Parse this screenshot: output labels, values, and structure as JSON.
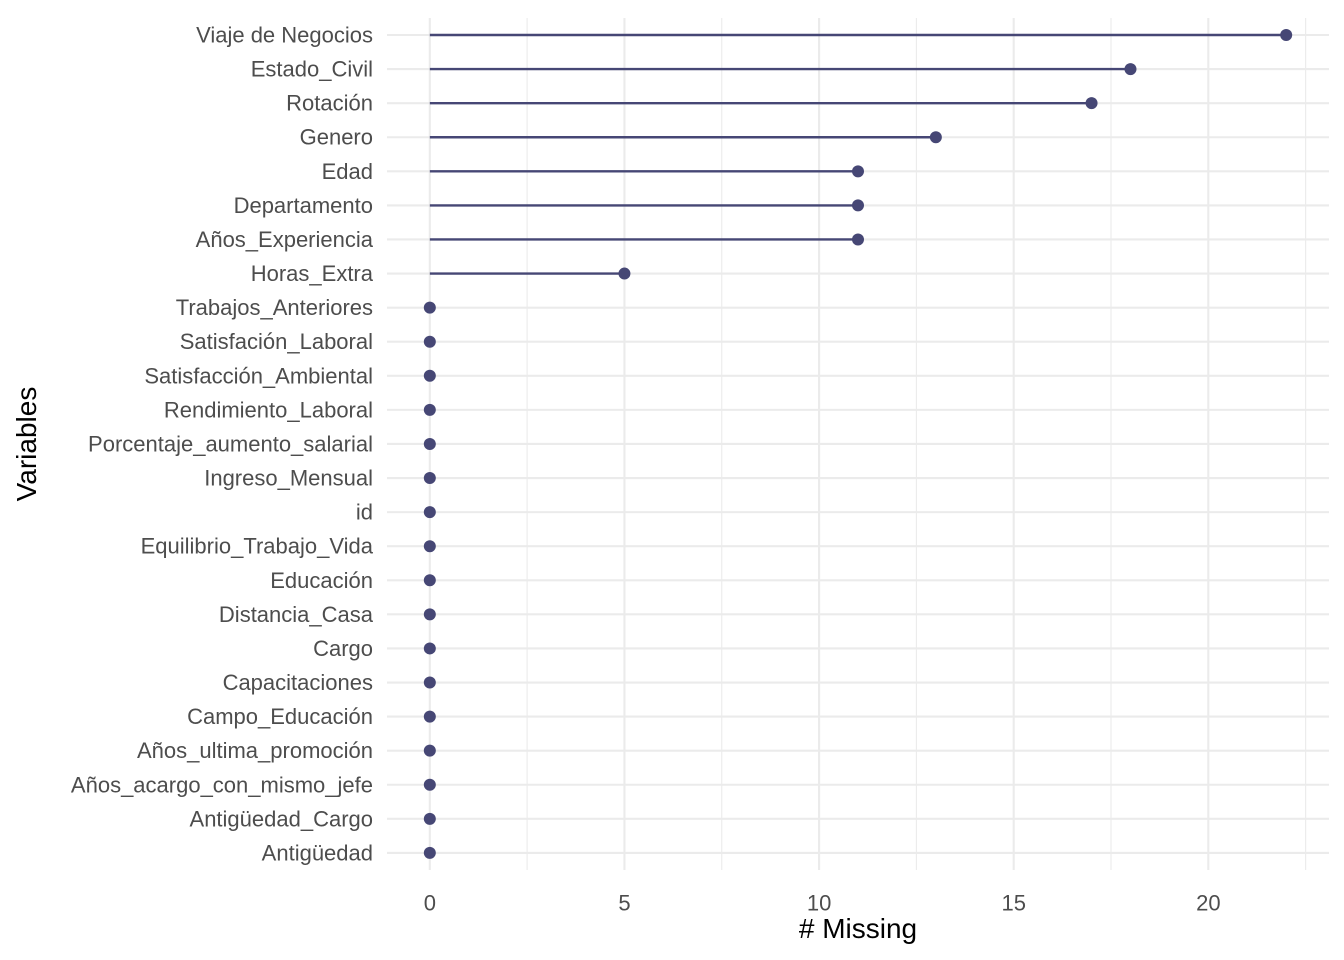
{
  "chart_data": {
    "type": "lollipop",
    "xlabel": "# Missing",
    "ylabel": "Variables",
    "xlim": [
      -1.1,
      23.1
    ],
    "xticks": [
      0,
      5,
      10,
      15,
      20
    ],
    "xtick_labels": [
      "0",
      "5",
      "10",
      "15",
      "20"
    ],
    "x_minor_ticks": [
      2.5,
      7.5,
      12.5,
      17.5,
      22.5
    ],
    "grid": true,
    "point_color": "#464775",
    "categories": [
      "Viaje de Negocios",
      "Estado_Civil",
      "Rotación",
      "Genero",
      "Edad",
      "Departamento",
      "Años_Experiencia",
      "Horas_Extra",
      "Trabajos_Anteriores",
      "Satisfación_Laboral",
      "Satisfacción_Ambiental",
      "Rendimiento_Laboral",
      "Porcentaje_aumento_salarial",
      "Ingreso_Mensual",
      "id",
      "Equilibrio_Trabajo_Vida",
      "Educación",
      "Distancia_Casa",
      "Cargo",
      "Capacitaciones",
      "Campo_Educación",
      "Años_ultima_promoción",
      "Años_acargo_con_mismo_jefe",
      "Antigüedad_Cargo",
      "Antigüedad"
    ],
    "values": [
      22,
      18,
      17,
      13,
      11,
      11,
      11,
      5,
      0,
      0,
      0,
      0,
      0,
      0,
      0,
      0,
      0,
      0,
      0,
      0,
      0,
      0,
      0,
      0,
      0
    ]
  }
}
